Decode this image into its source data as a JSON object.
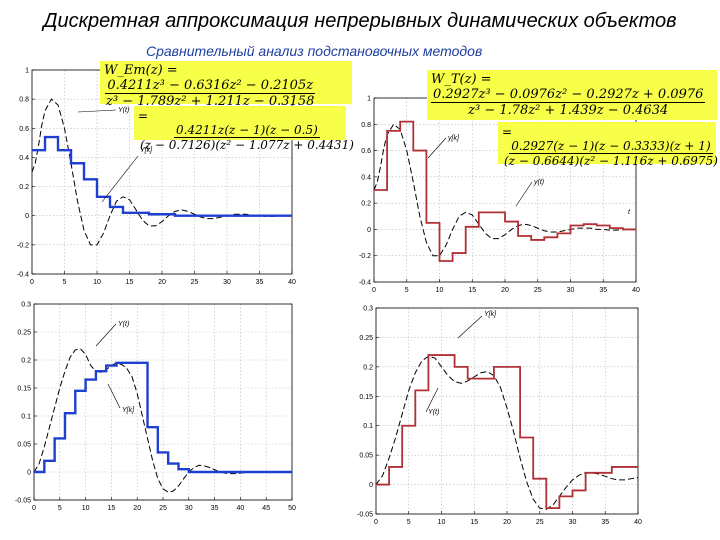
{
  "header": {
    "title": "Дискретная аппроксимация непрерывных динамических объектов",
    "subtitle": "Сравнительный анализ подстановочных методов"
  },
  "formulas": {
    "w_em_lhs": "W_Em(z) =",
    "w_em_num": "0.4211z³ − 0.6316z² − 0.2105z",
    "w_em_den": "z³ − 1.789z² + 1.211z − 0.3158",
    "w_em_fact_num": "0.4211z(z − 1)(z − 0.5)",
    "w_em_fact_den": "(z − 0.7126)(z² − 1.077z + 0.4431)",
    "w_t_lhs": "W_T(z) =",
    "w_t_num": "0.2927z³ − 0.0976z² − 0.2927z + 0.0976",
    "w_t_den": "z³ − 1.78z² + 1.439z − 0.4634",
    "w_t_fact_num": "0.2927(z − 1)(z − 0.3333)(z + 1)",
    "w_t_fact_den": "(z − 0.6644)(z² − 1.116z + 0.6975)"
  },
  "colors": {
    "blue": "#1f3fd1",
    "red": "#b03036",
    "continuous": "#000000",
    "grid": "#b9b9b9",
    "formula_bg": "#f7ff48"
  },
  "chart_data": [
    {
      "type": "line",
      "xlim": [
        0,
        40
      ],
      "ylim": [
        -0.4,
        1
      ],
      "xticks": [
        0,
        5,
        10,
        15,
        20,
        25,
        30,
        35,
        40
      ],
      "yticks": [
        -0.4,
        -0.2,
        0,
        0.2,
        0.4,
        0.6,
        0.8,
        1
      ],
      "grid": true,
      "annotations": [
        "Y(t)",
        "Y[k]"
      ],
      "series": [
        {
          "name": "Y(t)",
          "style": "dashed",
          "x": [
            0,
            0.5,
            1,
            1.5,
            2,
            3,
            4,
            5,
            6,
            7,
            8,
            9,
            10,
            11,
            12,
            13,
            14,
            15,
            16,
            17,
            18,
            19,
            20,
            21,
            22,
            23,
            24,
            25,
            26,
            27,
            28,
            29,
            30,
            31,
            32,
            33,
            34,
            35,
            36,
            37,
            38,
            39,
            40
          ],
          "y": [
            0.3,
            0.36,
            0.48,
            0.62,
            0.72,
            0.8,
            0.76,
            0.6,
            0.36,
            0.1,
            -0.1,
            -0.2,
            -0.2,
            -0.12,
            0,
            0.1,
            0.13,
            0.11,
            0.04,
            -0.03,
            -0.07,
            -0.07,
            -0.04,
            0,
            0.03,
            0.04,
            0.03,
            0.01,
            -0.01,
            -0.02,
            -0.02,
            -0.01,
            0,
            0.01,
            0.01,
            0.01,
            0,
            0,
            -0.005,
            -0.005,
            0,
            0,
            0
          ]
        },
        {
          "name": "Y[k]",
          "style": "step",
          "x": [
            0,
            2,
            4,
            6,
            8,
            10,
            12,
            14,
            16,
            18,
            20,
            22,
            24,
            26,
            28,
            30,
            32,
            34,
            36,
            38,
            40
          ],
          "y": [
            0.45,
            0.54,
            0.45,
            0.36,
            0.25,
            0.13,
            0.06,
            0.02,
            0.02,
            0.01,
            0.01,
            0,
            0,
            0,
            0,
            0,
            0,
            0,
            0,
            0,
            0
          ]
        }
      ]
    },
    {
      "type": "line",
      "xlim": [
        0,
        40
      ],
      "ylim": [
        -0.4,
        1
      ],
      "xticks": [
        0,
        5,
        10,
        15,
        20,
        25,
        30,
        35,
        40
      ],
      "yticks": [
        -0.4,
        -0.2,
        0,
        0.2,
        0.4,
        0.6,
        0.8,
        1
      ],
      "grid": true,
      "annotations": [
        "y[k]",
        "y(t)",
        "t"
      ],
      "series": [
        {
          "name": "y(t)",
          "style": "dashed",
          "x": [
            0,
            0.5,
            1,
            1.5,
            2,
            3,
            4,
            5,
            6,
            7,
            8,
            9,
            10,
            11,
            12,
            13,
            14,
            15,
            16,
            17,
            18,
            19,
            20,
            21,
            22,
            23,
            24,
            25,
            26,
            27,
            28,
            29,
            30,
            31,
            32,
            33,
            34,
            35,
            36,
            37,
            38,
            39,
            40
          ],
          "y": [
            0.3,
            0.36,
            0.48,
            0.62,
            0.72,
            0.8,
            0.76,
            0.6,
            0.36,
            0.1,
            -0.1,
            -0.2,
            -0.2,
            -0.12,
            0,
            0.1,
            0.13,
            0.11,
            0.04,
            -0.03,
            -0.07,
            -0.07,
            -0.04,
            0,
            0.03,
            0.04,
            0.03,
            0.01,
            -0.01,
            -0.02,
            -0.02,
            -0.01,
            0,
            0.01,
            0.01,
            0.01,
            0,
            0,
            -0.005,
            -0.005,
            0,
            0,
            0
          ]
        },
        {
          "name": "y[k]",
          "style": "step",
          "x": [
            0,
            2,
            4,
            6,
            8,
            10,
            12,
            14,
            16,
            18,
            20,
            22,
            24,
            26,
            28,
            30,
            32,
            34,
            36,
            38,
            40
          ],
          "y": [
            0.3,
            0.75,
            0.82,
            0.6,
            0.05,
            -0.24,
            -0.18,
            0.02,
            0.13,
            0.13,
            0.06,
            -0.05,
            -0.08,
            -0.06,
            -0.03,
            0.03,
            0.04,
            0.03,
            0.01,
            0,
            0
          ]
        }
      ]
    },
    {
      "type": "line",
      "xlim": [
        0,
        50
      ],
      "ylim": [
        -0.05,
        0.3
      ],
      "xticks": [
        0,
        5,
        10,
        15,
        20,
        25,
        30,
        35,
        40,
        45,
        50
      ],
      "yticks": [
        -0.05,
        0,
        0.05,
        0.1,
        0.15,
        0.2,
        0.25,
        0.3
      ],
      "grid": true,
      "annotations": [
        "Y(t)",
        "Y[k]"
      ],
      "series": [
        {
          "name": "Y(t)",
          "style": "dashed",
          "x": [
            0,
            1,
            2,
            3,
            4,
            5,
            6,
            7,
            8,
            9,
            10,
            11,
            12,
            13,
            14,
            15,
            16,
            17,
            18,
            19,
            20,
            21,
            22,
            23,
            24,
            25,
            26,
            27,
            28,
            29,
            30,
            31,
            32,
            33,
            34,
            35,
            36,
            37,
            38,
            39,
            40,
            42,
            44,
            46,
            48,
            50
          ],
          "y": [
            0,
            0.015,
            0.045,
            0.08,
            0.115,
            0.15,
            0.18,
            0.205,
            0.218,
            0.22,
            0.21,
            0.19,
            0.18,
            0.178,
            0.183,
            0.19,
            0.195,
            0.192,
            0.185,
            0.17,
            0.14,
            0.1,
            0.06,
            0.02,
            -0.012,
            -0.03,
            -0.036,
            -0.034,
            -0.025,
            -0.012,
            0,
            0.008,
            0.012,
            0.011,
            0.008,
            0.004,
            0,
            -0.002,
            -0.003,
            -0.003,
            -0.002,
            0,
            0.001,
            0.001,
            0,
            0
          ]
        },
        {
          "name": "Y[k]",
          "style": "step",
          "x": [
            0,
            2,
            4,
            6,
            8,
            10,
            12,
            14,
            16,
            18,
            20,
            22,
            24,
            26,
            28,
            30,
            32,
            34,
            36,
            38,
            40,
            42,
            44,
            46,
            48,
            50
          ],
          "y": [
            0,
            0.02,
            0.06,
            0.105,
            0.145,
            0.165,
            0.18,
            0.19,
            0.195,
            0.195,
            0.195,
            0.08,
            0.035,
            0.015,
            0.005,
            0,
            0,
            0,
            0,
            0,
            0,
            0,
            0,
            0,
            0,
            0
          ]
        }
      ]
    },
    {
      "type": "line",
      "xlim": [
        0,
        40
      ],
      "ylim": [
        -0.05,
        0.3
      ],
      "xticks": [
        0,
        5,
        10,
        15,
        20,
        25,
        30,
        35,
        40
      ],
      "yticks": [
        -0.05,
        0,
        0.05,
        0.1,
        0.15,
        0.2,
        0.25,
        0.3
      ],
      "grid": true,
      "annotations": [
        "Y[k]",
        "Y(t)"
      ],
      "series": [
        {
          "name": "Y(t)",
          "style": "dashed",
          "x": [
            0,
            1,
            2,
            3,
            4,
            5,
            6,
            7,
            8,
            9,
            10,
            11,
            12,
            13,
            14,
            15,
            16,
            17,
            18,
            19,
            20,
            21,
            22,
            23,
            24,
            25,
            26,
            27,
            28,
            29,
            30,
            31,
            32,
            33,
            34,
            35,
            36,
            37,
            38,
            39,
            40
          ],
          "y": [
            0,
            0.015,
            0.045,
            0.08,
            0.12,
            0.16,
            0.19,
            0.21,
            0.218,
            0.215,
            0.2,
            0.185,
            0.175,
            0.172,
            0.176,
            0.183,
            0.19,
            0.192,
            0.185,
            0.165,
            0.13,
            0.09,
            0.045,
            0.005,
            -0.025,
            -0.04,
            -0.042,
            -0.035,
            -0.02,
            -0.005,
            0.008,
            0.016,
            0.02,
            0.02,
            0.018,
            0.014,
            0.01,
            0.008,
            0.008,
            0.01,
            0.012
          ]
        },
        {
          "name": "Y[k]",
          "style": "step",
          "x": [
            0,
            2,
            4,
            6,
            8,
            10,
            12,
            14,
            16,
            18,
            20,
            22,
            24,
            26,
            28,
            30,
            32,
            34,
            36,
            38,
            40
          ],
          "y": [
            0,
            0.03,
            0.1,
            0.16,
            0.22,
            0.22,
            0.2,
            0.18,
            0.18,
            0.2,
            0.2,
            0.08,
            0.01,
            -0.04,
            -0.02,
            -0.01,
            0.02,
            0.02,
            0.03,
            0.03,
            0.03
          ]
        }
      ]
    }
  ]
}
